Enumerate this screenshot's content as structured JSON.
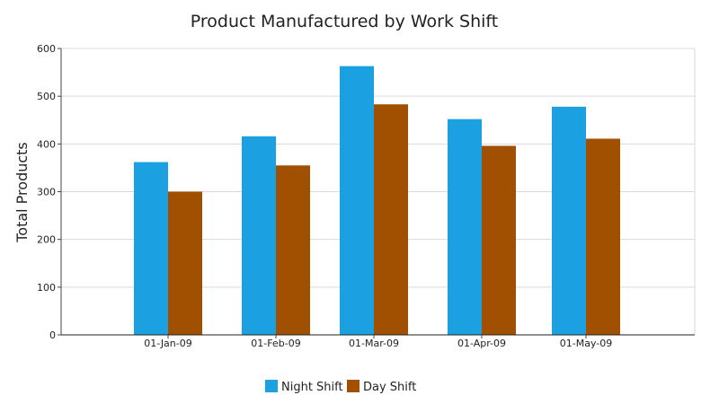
{
  "chart_data": {
    "type": "bar",
    "title": "Product Manufactured by Work Shift",
    "xlabel": "",
    "ylabel": "Total Products",
    "categories": [
      "01-Jan-09",
      "01-Feb-09",
      "01-Mar-09",
      "01-Apr-09",
      "01-May-09"
    ],
    "series": [
      {
        "name": "Night Shift",
        "color": "#1ba1e2",
        "values": [
          362,
          416,
          563,
          452,
          478
        ]
      },
      {
        "name": "Day Shift",
        "color": "#a05000",
        "values": [
          300,
          355,
          483,
          396,
          411
        ]
      }
    ],
    "ylim": [
      0,
      600
    ],
    "yticks": [
      0,
      100,
      200,
      300,
      400,
      500,
      600
    ],
    "grid": true,
    "legend": "bottom-center"
  }
}
